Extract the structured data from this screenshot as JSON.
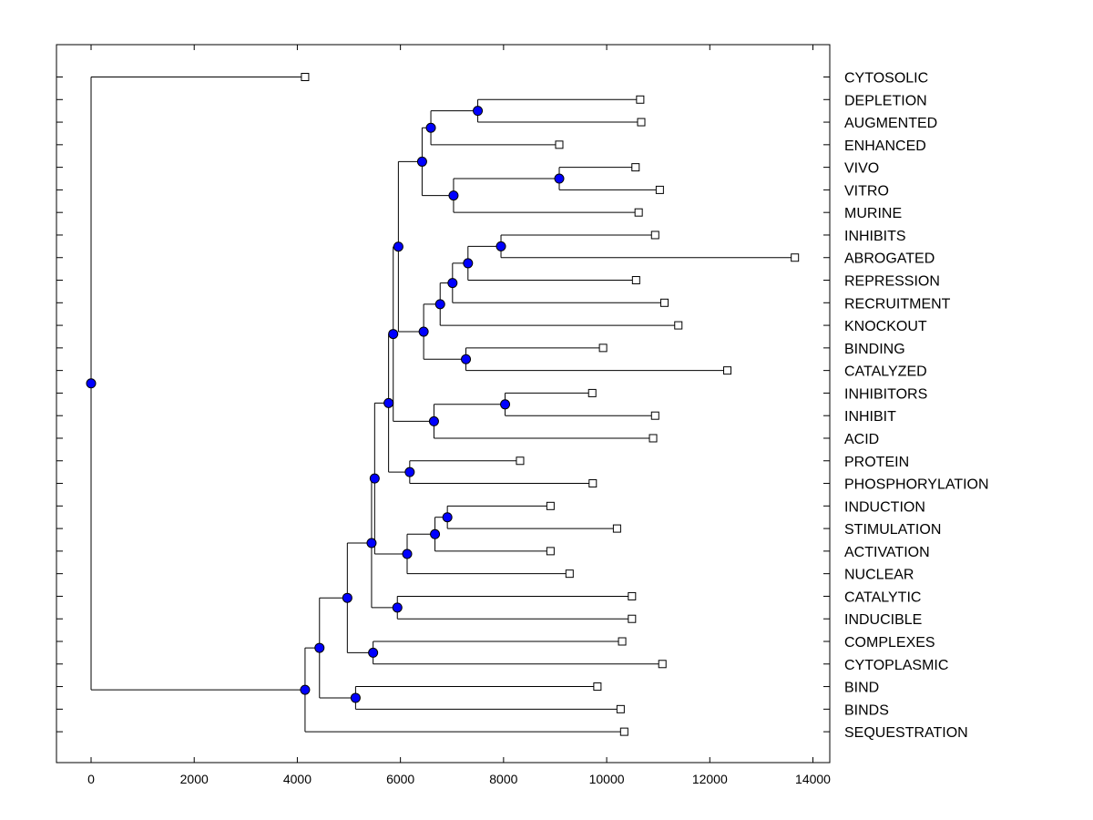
{
  "chart_data": {
    "type": "dendrogram",
    "title": "",
    "xlabel": "",
    "ylabel": "",
    "xlim": [
      -700,
      14400
    ],
    "x_ticks": [
      "0",
      "2000",
      "4000",
      "6000",
      "8000",
      "10000",
      "12000",
      "14000"
    ],
    "x_tick_values": [
      0,
      2000,
      4000,
      6000,
      8000,
      10000,
      12000,
      14000
    ],
    "grid": false,
    "leaves": [
      {
        "label": "CYTOSOLIC",
        "value": 4150
      },
      {
        "label": "DEPLETION",
        "value": 10650
      },
      {
        "label": "AUGMENTED",
        "value": 10670
      },
      {
        "label": "ENHANCED",
        "value": 9080
      },
      {
        "label": "VIVO",
        "value": 10560
      },
      {
        "label": "VITRO",
        "value": 11030
      },
      {
        "label": "MURINE",
        "value": 10620
      },
      {
        "label": "INHIBITS",
        "value": 10940
      },
      {
        "label": "ABROGATED",
        "value": 13650
      },
      {
        "label": "REPRESSION",
        "value": 10570
      },
      {
        "label": "RECRUITMENT",
        "value": 11120
      },
      {
        "label": "KNOCKOUT",
        "value": 11390
      },
      {
        "label": "BINDING",
        "value": 9930
      },
      {
        "label": "CATALYZED",
        "value": 12340
      },
      {
        "label": "INHIBITORS",
        "value": 9720
      },
      {
        "label": "INHIBIT",
        "value": 10940
      },
      {
        "label": "ACID",
        "value": 10900
      },
      {
        "label": "PROTEIN",
        "value": 8320
      },
      {
        "label": "PHOSPHORYLATION",
        "value": 9730
      },
      {
        "label": "INDUCTION",
        "value": 8910
      },
      {
        "label": "STIMULATION",
        "value": 10200
      },
      {
        "label": "ACTIVATION",
        "value": 8910
      },
      {
        "label": "NUCLEAR",
        "value": 9280
      },
      {
        "label": "CATALYTIC",
        "value": 10490
      },
      {
        "label": "INDUCIBLE",
        "value": 10490
      },
      {
        "label": "COMPLEXES",
        "value": 10300
      },
      {
        "label": "CYTOPLASMIC",
        "value": 11080
      },
      {
        "label": "BIND",
        "value": 9820
      },
      {
        "label": "BINDS",
        "value": 10270
      },
      {
        "label": "SEQUESTRATION",
        "value": 10340
      }
    ],
    "merges": [
      {
        "children": [
          "DEPLETION",
          "AUGMENTED"
        ],
        "value": 7500
      },
      {
        "children": [
          "VIVO",
          "VITRO"
        ],
        "value": 9080
      },
      {
        "children": [
          "INHIBITS",
          "ABROGATED"
        ],
        "value": 7950
      },
      {
        "children": [
          "BINDING",
          "CATALYZED"
        ],
        "value": 7270
      },
      {
        "children": [
          "INHIBITORS",
          "INHIBIT"
        ],
        "value": 8030
      },
      {
        "children": [
          "PROTEIN",
          "PHOSPHORYLATION"
        ],
        "value": 6180
      },
      {
        "children": [
          "INDUCTION",
          "STIMULATION"
        ],
        "value": 6910
      },
      {
        "children": [
          "CATALYTIC",
          "INDUCIBLE"
        ],
        "value": 5940
      },
      {
        "children": [
          "COMPLEXES",
          "CYTOPLASMIC"
        ],
        "value": 5470
      },
      {
        "children": [
          "BIND",
          "BINDS"
        ],
        "value": 5130
      },
      {
        "children": [
          "M1",
          "ENHANCED"
        ],
        "value": 6590
      },
      {
        "children": [
          "M2",
          "MURINE"
        ],
        "value": 7030
      },
      {
        "children": [
          "M11",
          "M12"
        ],
        "value": 6420
      },
      {
        "children": [
          "M3",
          "REPRESSION"
        ],
        "value": 7310
      },
      {
        "children": [
          "M14",
          "RECRUITMENT"
        ],
        "value": 7010
      },
      {
        "children": [
          "M15",
          "KNOCKOUT"
        ],
        "value": 6770
      },
      {
        "children": [
          "M16",
          "M4"
        ],
        "value": 6450
      },
      {
        "children": [
          "M13",
          "M17"
        ],
        "value": 5960
      },
      {
        "children": [
          "M5",
          "ACID"
        ],
        "value": 6650
      },
      {
        "children": [
          "M18",
          "M19"
        ],
        "value": 5860
      },
      {
        "children": [
          "M20",
          "M6"
        ],
        "value": 5770
      },
      {
        "children": [
          "M7",
          "ACTIVATION"
        ],
        "value": 6670
      },
      {
        "children": [
          "M22",
          "NUCLEAR"
        ],
        "value": 6130
      },
      {
        "children": [
          "M21",
          "M23"
        ],
        "value": 5500
      },
      {
        "children": [
          "M24",
          "M8"
        ],
        "value": 5440
      },
      {
        "children": [
          "M25",
          "M9"
        ],
        "value": 4970
      },
      {
        "children": [
          "M26",
          "M10"
        ],
        "value": 4430
      },
      {
        "children": [
          "M27",
          "SEQUESTRATION"
        ],
        "value": 4150
      },
      {
        "children": [
          "CYTOSOLIC",
          "M28"
        ],
        "value": 0
      }
    ],
    "colors": {
      "node": "#0000ff",
      "line": "#000000",
      "leaf_marker": "#ffffff"
    }
  }
}
